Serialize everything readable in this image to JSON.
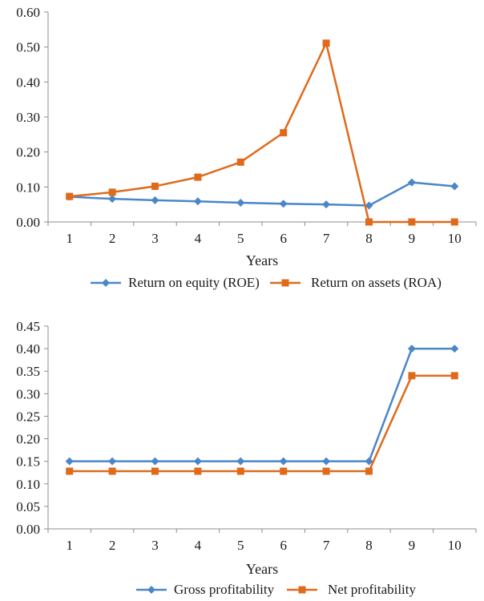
{
  "chart_data": [
    {
      "type": "line",
      "title": "",
      "xlabel": "Years",
      "ylabel": "",
      "x": [
        "1",
        "2",
        "3",
        "4",
        "5",
        "6",
        "7",
        "8",
        "9",
        "10"
      ],
      "ylim": [
        0,
        0.6
      ],
      "yticks": [
        "0.00",
        "0.10",
        "0.20",
        "0.30",
        "0.40",
        "0.50",
        "0.60"
      ],
      "grid": false,
      "legend_position": "bottom",
      "series": [
        {
          "name": "Return on equity (ROE)",
          "color": "#4a86c8",
          "marker": "diamond",
          "values": [
            0.072,
            0.066,
            0.062,
            0.059,
            0.055,
            0.052,
            0.05,
            0.047,
            0.113,
            0.102
          ]
        },
        {
          "name": "Return on assets (ROA)",
          "color": "#e06a1b",
          "marker": "square",
          "values": [
            0.073,
            0.085,
            0.102,
            0.128,
            0.171,
            0.255,
            0.511,
            0.0,
            0.0,
            0.0
          ]
        }
      ]
    },
    {
      "type": "line",
      "title": "",
      "xlabel": "Years",
      "ylabel": "",
      "x": [
        "1",
        "2",
        "3",
        "4",
        "5",
        "6",
        "7",
        "8",
        "9",
        "10"
      ],
      "ylim": [
        0,
        0.45
      ],
      "yticks": [
        "0.00",
        "0.05",
        "0.10",
        "0.15",
        "0.20",
        "0.25",
        "0.30",
        "0.35",
        "0.40",
        "0.45"
      ],
      "grid": false,
      "legend_position": "bottom",
      "series": [
        {
          "name": "Gross profitability",
          "color": "#4a86c8",
          "marker": "diamond",
          "values": [
            0.15,
            0.15,
            0.15,
            0.15,
            0.15,
            0.15,
            0.15,
            0.15,
            0.4,
            0.4
          ]
        },
        {
          "name": "Net profitability",
          "color": "#e06a1b",
          "marker": "square",
          "values": [
            0.128,
            0.128,
            0.128,
            0.128,
            0.128,
            0.128,
            0.128,
            0.128,
            0.34,
            0.34
          ]
        }
      ]
    }
  ]
}
